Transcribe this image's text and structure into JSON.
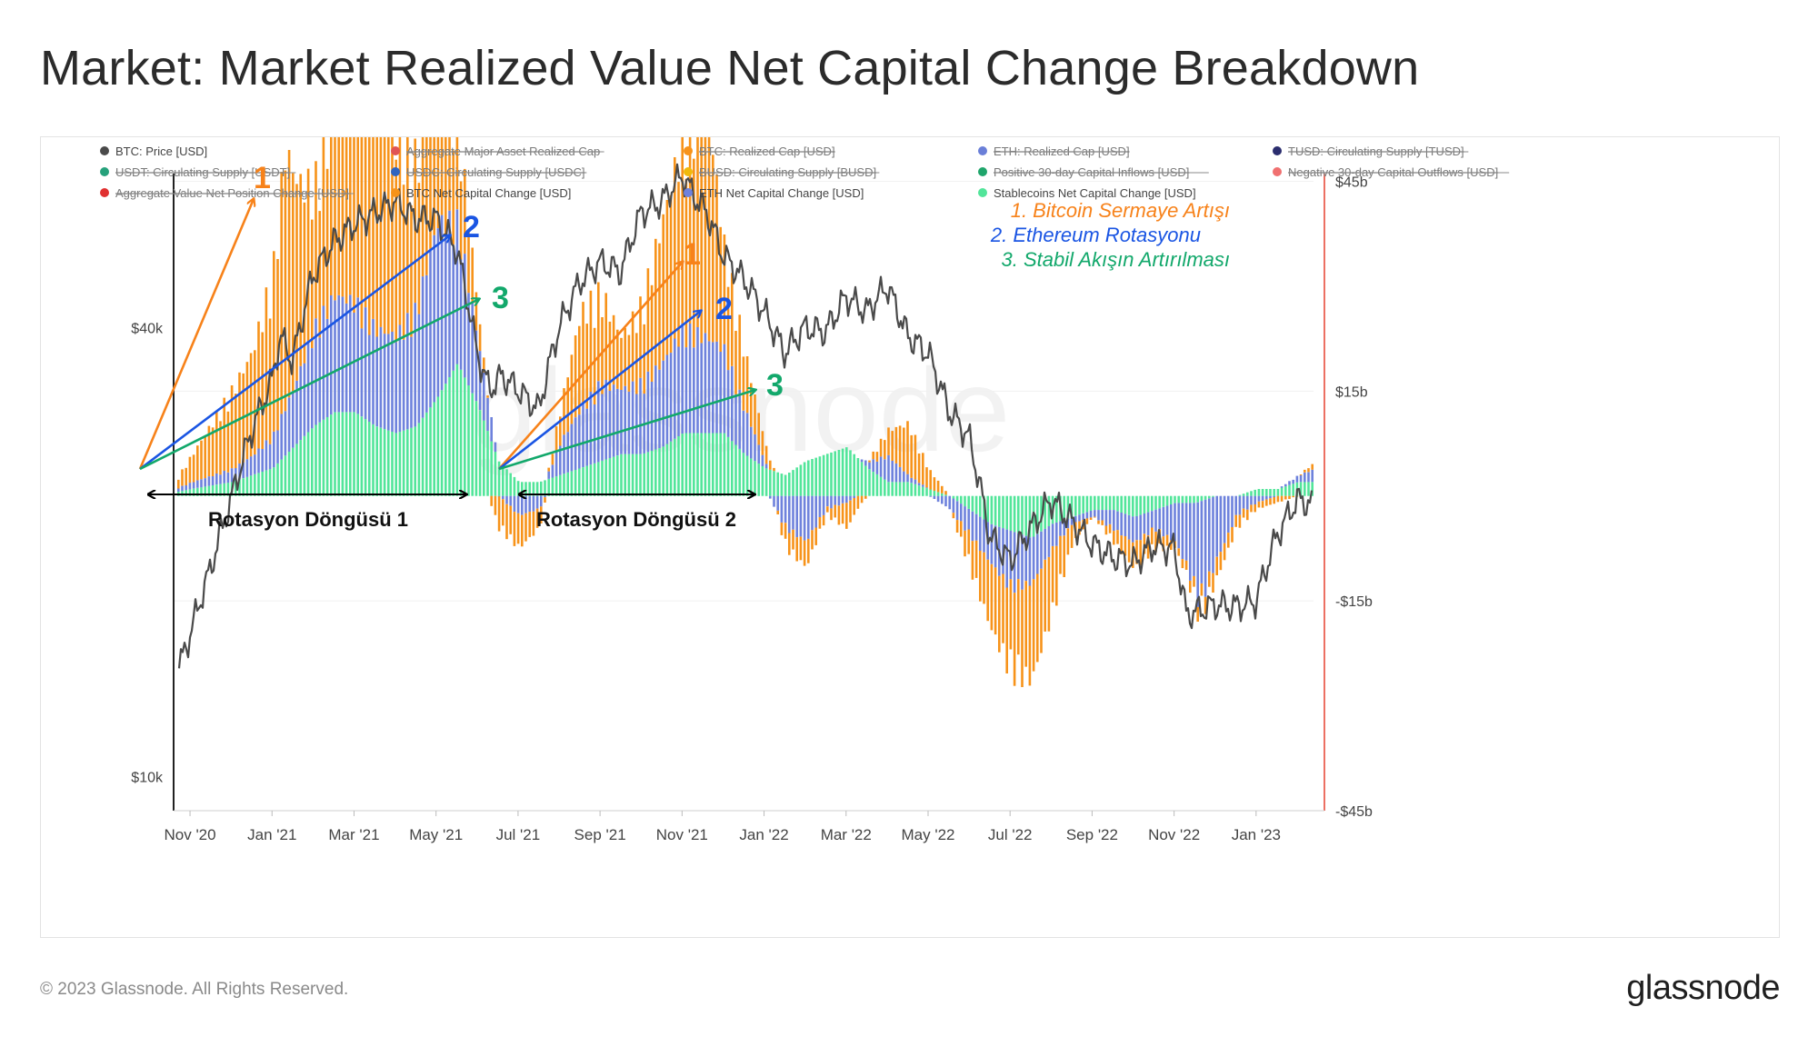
{
  "page": {
    "title": "Market: Market Realized Value Net Capital Change Breakdown",
    "copyright": "© 2023 Glassnode. All Rights Reserved.",
    "logo": "glassnode",
    "watermark": "glassnode"
  },
  "chart_data": {
    "type": "bar",
    "title": "Market: Market Realized Value Net Capital Change Breakdown",
    "legend": [
      {
        "label": "BTC: Price [USD]",
        "color": "#4a4a4a",
        "struck": false
      },
      {
        "label": "Aggregate Major Asset Realized Cap",
        "color": "#e05555",
        "struck": true
      },
      {
        "label": "BTC: Realized Cap [USD]",
        "color": "#f7931a",
        "struck": true
      },
      {
        "label": "ETH: Realized Cap [USD]",
        "color": "#6a7fd8",
        "struck": true
      },
      {
        "label": "TUSD: Circulating Supply [TUSD]",
        "color": "#2b2d6e",
        "struck": true
      },
      {
        "label": "USDT: Circulating Supply [USDT]",
        "color": "#26a17b",
        "struck": true
      },
      {
        "label": "USDC: Circulating Supply [USDC]",
        "color": "#2f64c0",
        "struck": true
      },
      {
        "label": "BUSD: Circulating Supply [BUSD]",
        "color": "#f0b90b",
        "struck": true
      },
      {
        "label": "Positive 30-day Capital Inflows [USD]",
        "color": "#1fa56b",
        "struck": true
      },
      {
        "label": "Negative 30-day Capital Outflows [USD]",
        "color": "#f07070",
        "struck": true
      },
      {
        "label": "Aggregate Value Net Position Change [USD]",
        "color": "#e03030",
        "struck": true
      },
      {
        "label": "BTC Net Capital Change [USD]",
        "color": "#f7931a",
        "struck": false
      },
      {
        "label": "ETH Net Capital Change [USD]",
        "color": "#6e82dc",
        "struck": false
      },
      {
        "label": "Stablecoins Net Capital Change [USD]",
        "color": "#52e59a",
        "struck": false
      }
    ],
    "x_ticks": [
      "Nov '20",
      "Jan '21",
      "Mar '21",
      "May '21",
      "Jul '21",
      "Sep '21",
      "Nov '21",
      "Jan '22",
      "Mar '22",
      "May '22",
      "Jul '22",
      "Sep '22",
      "Nov '22",
      "Jan '23"
    ],
    "x_tick_month_index": [
      1,
      3,
      5,
      7,
      9,
      11,
      13,
      15,
      17,
      19,
      21,
      23,
      25,
      27
    ],
    "x_range_month_index": [
      0.6,
      28.4
    ],
    "y_left": {
      "scale": "log",
      "range": [
        9000,
        70000
      ],
      "ticks": [
        10000,
        40000
      ],
      "tick_labels": [
        "$10k",
        "$40k"
      ]
    },
    "y_right": {
      "scale": "linear",
      "range": [
        -45,
        50
      ],
      "unit": "billion USD",
      "ticks": [
        45,
        15,
        -15,
        -45
      ],
      "tick_labels": [
        "$45b",
        "$15b",
        "-$15b",
        "-$45b"
      ]
    },
    "series": [
      {
        "name": "BTC: Price [USD]",
        "axis": "left",
        "color": "#4a4a4a",
        "type": "line",
        "x": [
          0.6,
          1.0,
          1.5,
          2.0,
          2.5,
          3.0,
          3.2,
          3.5,
          4.0,
          4.5,
          5.0,
          5.5,
          6.0,
          6.5,
          7.0,
          7.5,
          8.0,
          8.3,
          8.6,
          9.0,
          9.5,
          10.0,
          10.5,
          11.0,
          11.5,
          12.0,
          12.5,
          13.0,
          13.3,
          13.6,
          14.0,
          14.5,
          15.0,
          15.5,
          16.0,
          16.5,
          17.0,
          17.5,
          18.0,
          18.5,
          19.0,
          19.5,
          20.0,
          20.5,
          21.0,
          21.5,
          22.0,
          22.5,
          23.0,
          23.5,
          24.0,
          24.5,
          25.0,
          25.3,
          25.6,
          26.0,
          26.5,
          27.0,
          27.5,
          28.0,
          28.4
        ],
        "values": [
          13200,
          15500,
          19000,
          23500,
          29000,
          34000,
          39000,
          36000,
          47000,
          52000,
          55000,
          57000,
          59000,
          56000,
          56000,
          51000,
          37000,
          33000,
          34500,
          33000,
          31000,
          40000,
          46000,
          49000,
          47500,
          57000,
          59000,
          64000,
          60000,
          57000,
          50000,
          46500,
          42000,
          37000,
          40000,
          39500,
          44000,
          42000,
          45500,
          39000,
          37000,
          31000,
          28500,
          21000,
          19500,
          21500,
          23500,
          22000,
          20500,
          19700,
          19300,
          20400,
          20200,
          16500,
          16700,
          17000,
          16900,
          17200,
          21000,
          23500,
          23200
        ]
      },
      {
        "name": "BTC Net Capital Change [USD]",
        "axis": "right",
        "color": "#f7931a",
        "type": "bar",
        "x": [
          0.6,
          1.0,
          1.5,
          2.0,
          2.5,
          3.0,
          3.3,
          3.6,
          4.0,
          4.5,
          5.0,
          5.3,
          5.6,
          6.0,
          6.5,
          7.0,
          7.5,
          8.0,
          8.5,
          9.0,
          9.5,
          10.0,
          10.5,
          11.0,
          11.5,
          12.0,
          12.5,
          13.0,
          13.5,
          13.8,
          14.0,
          14.5,
          15.0,
          15.5,
          16.0,
          16.5,
          17.0,
          17.5,
          18.0,
          18.5,
          19.0,
          19.5,
          20.0,
          20.5,
          21.0,
          21.5,
          22.0,
          22.5,
          23.0,
          23.5,
          24.0,
          24.5,
          25.0,
          25.5,
          26.0,
          26.5,
          27.0,
          27.5,
          28.0,
          28.4
        ],
        "values": [
          1,
          4,
          8,
          12,
          16,
          25,
          40,
          30,
          22,
          28,
          40,
          39,
          35,
          30,
          23,
          22,
          16,
          5,
          -5,
          -5,
          -3,
          5,
          15,
          14,
          8,
          12,
          22,
          30,
          38,
          26,
          16,
          9,
          3,
          -3,
          -4,
          -1,
          -4,
          0,
          4,
          8,
          3,
          0,
          -5,
          -10,
          -13,
          -15,
          -10,
          -3,
          0,
          -2,
          -4,
          -3,
          -1,
          -2,
          -3,
          -2,
          -1,
          -1,
          0,
          1
        ]
      },
      {
        "name": "ETH Net Capital Change [USD]",
        "axis": "right",
        "color": "#6e82dc",
        "type": "bar",
        "x": [
          0.6,
          1.0,
          1.5,
          2.0,
          2.5,
          3.0,
          3.5,
          4.0,
          4.5,
          5.0,
          5.5,
          6.0,
          6.5,
          7.0,
          7.5,
          8.0,
          8.5,
          9.0,
          9.5,
          10.0,
          10.5,
          11.0,
          11.5,
          12.0,
          12.5,
          13.0,
          13.5,
          14.0,
          14.5,
          15.0,
          15.5,
          16.0,
          16.5,
          17.0,
          17.5,
          18.0,
          18.5,
          19.0,
          19.5,
          20.0,
          20.5,
          21.0,
          21.5,
          22.0,
          22.5,
          23.0,
          23.5,
          24.0,
          24.5,
          25.0,
          25.3,
          25.6,
          26.0,
          26.5,
          27.0,
          27.5,
          28.0,
          28.4
        ],
        "values": [
          0.5,
          1,
          1.5,
          2,
          3,
          5,
          9,
          15,
          18,
          17,
          15,
          15,
          18,
          27,
          22,
          10,
          0,
          -3,
          -2,
          5,
          9,
          12,
          10,
          11,
          13,
          16,
          15,
          13,
          7,
          1,
          -5,
          -7,
          -2,
          -1,
          1,
          4,
          1,
          0,
          -2,
          -4,
          -6,
          -9,
          -7,
          -4,
          -1,
          -1,
          -3,
          -4,
          -3,
          -6,
          -10,
          -16,
          -10,
          -3,
          -1,
          0,
          1,
          2
        ]
      },
      {
        "name": "Stablecoins Net Capital Change [USD]",
        "axis": "right",
        "color": "#52e59a",
        "type": "bar",
        "x": [
          0.6,
          1.0,
          1.5,
          2.0,
          2.5,
          3.0,
          3.5,
          4.0,
          4.5,
          5.0,
          5.5,
          6.0,
          6.5,
          7.0,
          7.5,
          8.0,
          8.5,
          9.0,
          9.5,
          10.0,
          10.5,
          11.0,
          11.5,
          12.0,
          12.5,
          13.0,
          13.5,
          14.0,
          14.5,
          15.0,
          15.5,
          16.0,
          16.5,
          17.0,
          17.5,
          18.0,
          18.5,
          19.0,
          19.5,
          20.0,
          20.5,
          21.0,
          21.5,
          22.0,
          22.5,
          23.0,
          23.5,
          24.0,
          24.5,
          25.0,
          25.5,
          26.0,
          26.5,
          27.0,
          27.5,
          28.0,
          28.4
        ],
        "values": [
          0.5,
          1,
          1.5,
          2,
          3,
          4,
          7,
          10,
          12,
          12,
          10,
          9,
          10,
          14,
          19,
          13,
          5,
          2,
          2,
          3,
          4,
          5,
          6,
          6,
          7,
          9,
          9,
          9,
          6,
          4,
          3,
          5,
          6,
          7,
          4,
          2,
          2,
          1,
          0,
          -2,
          -4,
          -5,
          -6,
          -4,
          -3,
          -2,
          -2,
          -3,
          -2,
          -1,
          -1,
          0,
          0,
          1,
          1,
          2,
          2
        ]
      }
    ],
    "annotations": {
      "notes": [
        {
          "label": "1. Bitcoin Sermaye Artışı",
          "color": "#f7821a"
        },
        {
          "label": "2. Ethereum Rotasyonu",
          "color": "#1a55e3"
        },
        {
          "label": "3. Stabil Akışın Artırılması",
          "color": "#12a86b"
        }
      ],
      "arrow_labels": [
        "1",
        "2",
        "3"
      ],
      "cycles": [
        "Rotasyon Döngüsü 1",
        "Rotasyon Döngüsü 2"
      ]
    }
  }
}
